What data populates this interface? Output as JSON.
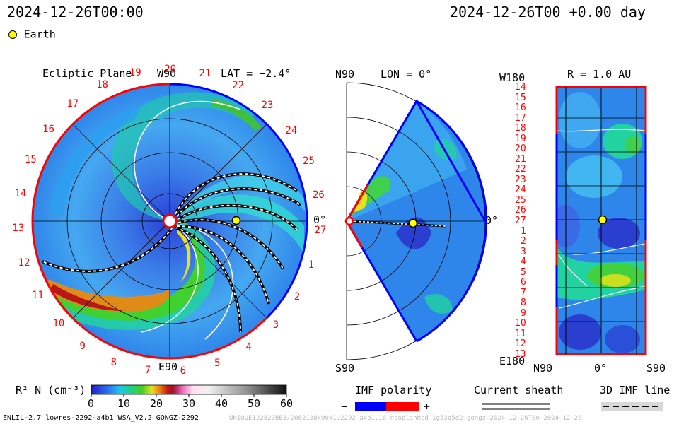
{
  "header": {
    "timestamp_left": "2024-12-26T00:00",
    "timestamp_right": "2024-12-26T00 +0.00 day"
  },
  "legend_top": {
    "earth_label": "Earth",
    "earth_color": "#ffff00"
  },
  "panels": {
    "ecliptic": {
      "title": "Ecliptic Plane",
      "top_label": "W90",
      "bottom_label": "E90",
      "right_label": "0°",
      "lat_label": "LAT = −2.4°",
      "carrington_labels": [
        "19",
        "20",
        "21",
        "22",
        "23",
        "24",
        "25",
        "26",
        "27",
        "1",
        "2",
        "3",
        "4",
        "5",
        "6",
        "7",
        "8",
        "9",
        "10",
        "11",
        "12",
        "13",
        "14",
        "15",
        "16",
        "17",
        "18"
      ]
    },
    "meridional": {
      "top_label": "N90",
      "bottom_label": "S90",
      "right_label": "0°",
      "lon_label": "LON = 0°"
    },
    "sphere": {
      "title": "R = 1.0 AU",
      "top_left_label": "W180",
      "bottom_left_label": "E180",
      "x_labels": [
        "N90",
        "0°",
        "S90"
      ],
      "y_labels": [
        "14",
        "15",
        "16",
        "17",
        "18",
        "19",
        "20",
        "21",
        "22",
        "23",
        "24",
        "25",
        "26",
        "27",
        "1",
        "2",
        "3",
        "4",
        "5",
        "6",
        "7",
        "8",
        "9",
        "10",
        "11",
        "12",
        "13"
      ]
    }
  },
  "colorbar": {
    "label": "R² N (cm⁻³)",
    "ticks": [
      "0",
      "10",
      "20",
      "30",
      "40",
      "50",
      "60"
    ]
  },
  "legend_bottom": {
    "imf_title": "IMF polarity",
    "imf_minus": "−",
    "imf_plus": "+",
    "sheath_title": "Current sheath",
    "imf_line_title": "3D IMF line",
    "minus_color": "#0000ff",
    "plus_color": "#ff0000"
  },
  "footer": {
    "model_info": "ENLIL-2.7 lowres-2292-a4b1 WSA_V2.2 GONGZ-2292",
    "watermark": "UNIQUE122823BB3/2082138x90x1.2292-a4b1.16-nsoplanmcd-1g53q5d2.gongz-2024-12-26T00 2024-12-26"
  },
  "chart_data": {
    "type": "heatmap",
    "quantity": "R² N (cm⁻³)",
    "color_range": [
      0,
      60
    ],
    "observer": "Earth",
    "earth_position": {
      "longitude_deg": 0,
      "latitude_deg": -2.4,
      "r_au": 1.0
    },
    "sphere_earth_y_label": "27"
  }
}
